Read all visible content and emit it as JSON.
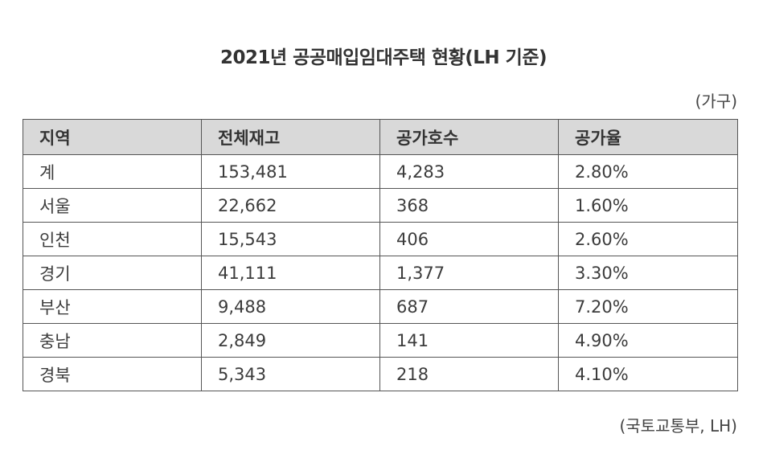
{
  "title": "2021년 공공매입임대주택 현황(LH 기준)",
  "unit": "(가구)",
  "table": {
    "headers": [
      "지역",
      "전체재고",
      "공가호수",
      "공가율"
    ],
    "rows": [
      [
        "계",
        "153,481",
        "4,283",
        "2.80%"
      ],
      [
        "서울",
        "22,662",
        "368",
        "1.60%"
      ],
      [
        "인천",
        "15,543",
        "406",
        "2.60%"
      ],
      [
        "경기",
        "41,111",
        "1,377",
        "3.30%"
      ],
      [
        "부산",
        "9,488",
        "687",
        "7.20%"
      ],
      [
        "충남",
        "2,849",
        "141",
        "4.90%"
      ],
      [
        "경북",
        "5,343",
        "218",
        "4.10%"
      ]
    ]
  },
  "source": "(국토교통부, LH)"
}
